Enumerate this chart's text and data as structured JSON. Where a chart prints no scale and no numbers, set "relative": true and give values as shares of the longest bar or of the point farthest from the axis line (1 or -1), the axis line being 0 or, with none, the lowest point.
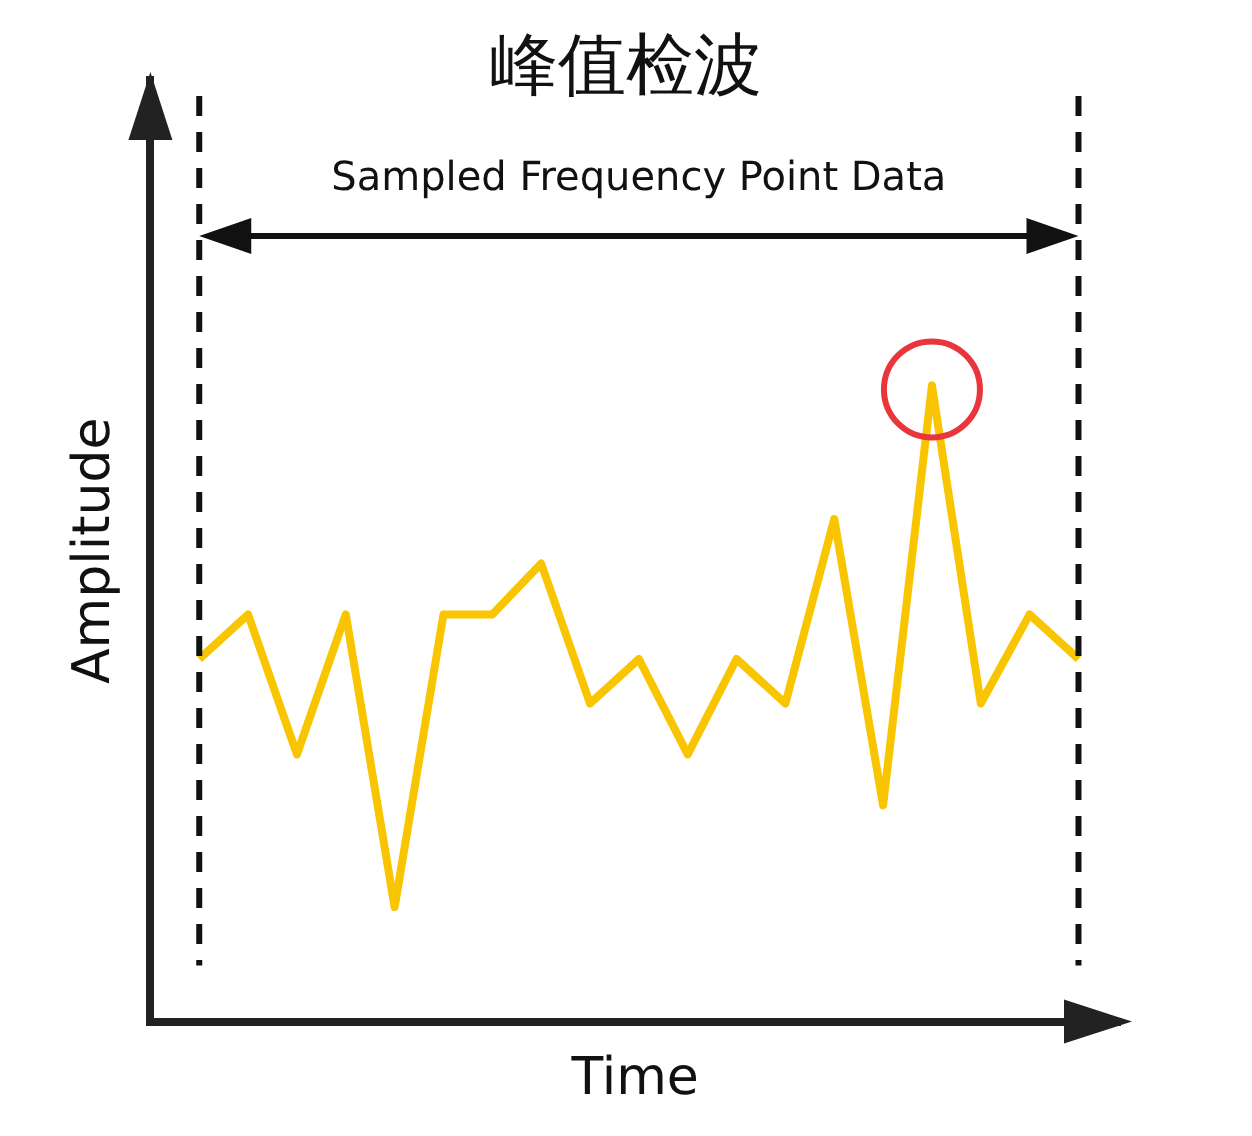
{
  "chart_data": {
    "type": "line",
    "title": "峰值检波",
    "xlabel": "Time",
    "ylabel": "Amplitude",
    "relative": true,
    "legend": false,
    "categories": [
      null,
      null,
      null,
      null,
      null,
      null,
      null,
      null,
      null,
      null,
      null,
      null,
      null,
      null,
      null,
      null,
      null,
      null,
      null
    ],
    "series": [
      {
        "color": "#f8c500",
        "marker": "none",
        "values": [
          0.57,
          0.64,
          0.42,
          0.64,
          0.18,
          0.64,
          0.64,
          0.72,
          0.5,
          0.57,
          0.42,
          0.57,
          0.5,
          0.79,
          0.34,
          1,
          0.5,
          0.64,
          0.57
        ]
      }
    ],
    "annotations": [
      "Sampled Frequency Point Data"
    ]
  }
}
